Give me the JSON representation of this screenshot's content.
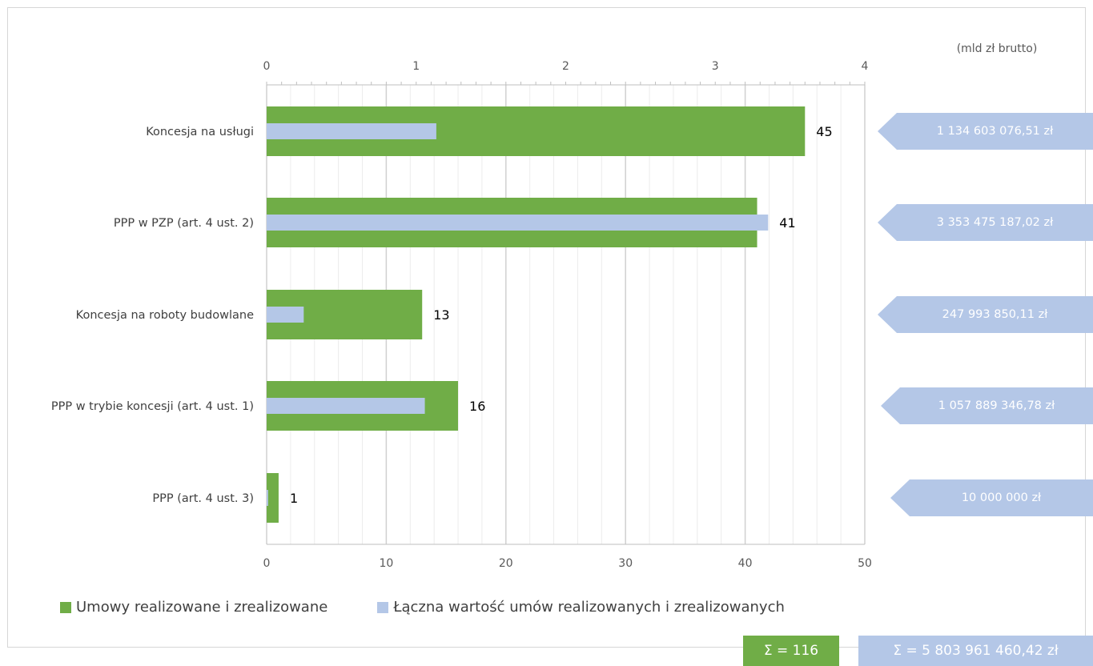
{
  "chart_data": {
    "type": "bar",
    "orientation": "horizontal",
    "categories": [
      "Koncesja na usługi",
      "PPP w PZP (art. 4 ust. 2)",
      "Koncesja na roboty budowlane",
      "PPP w trybie koncesji (art. 4 ust. 1)",
      "PPP (art. 4 ust. 3)"
    ],
    "series": [
      {
        "name": "Umowy realizowane i zrealizowane",
        "color": "#70ad47",
        "axis": "bottom",
        "values": [
          45,
          41,
          13,
          16,
          1
        ],
        "data_labels": [
          "45",
          "41",
          "13",
          "16",
          "1"
        ]
      },
      {
        "name": "Łączna wartość umów realizowanych i zrealizowanych",
        "color": "#b4c7e7",
        "axis": "top",
        "values": [
          1.1346,
          3.3535,
          0.248,
          1.0579,
          0.01
        ],
        "value_labels": [
          "1 134 603 076,51 zł",
          "3 353 475 187,02 zł",
          "247 993 850,11 zł",
          "1 057 889 346,78 zł",
          "10 000 000 zł"
        ]
      }
    ],
    "x_bottom": {
      "range": [
        0,
        50
      ],
      "ticks": [
        "0",
        "10",
        "20",
        "30",
        "40",
        "50"
      ]
    },
    "x_top": {
      "range": [
        0,
        4
      ],
      "ticks": [
        "0",
        "1",
        "2",
        "3",
        "4"
      ],
      "unit_label": "(mld zł brutto)"
    },
    "grid": true,
    "legend_position": "bottom-left",
    "totals": {
      "count": "Σ = 116",
      "value": "Σ = 5 803 961 460,42 zł"
    }
  }
}
